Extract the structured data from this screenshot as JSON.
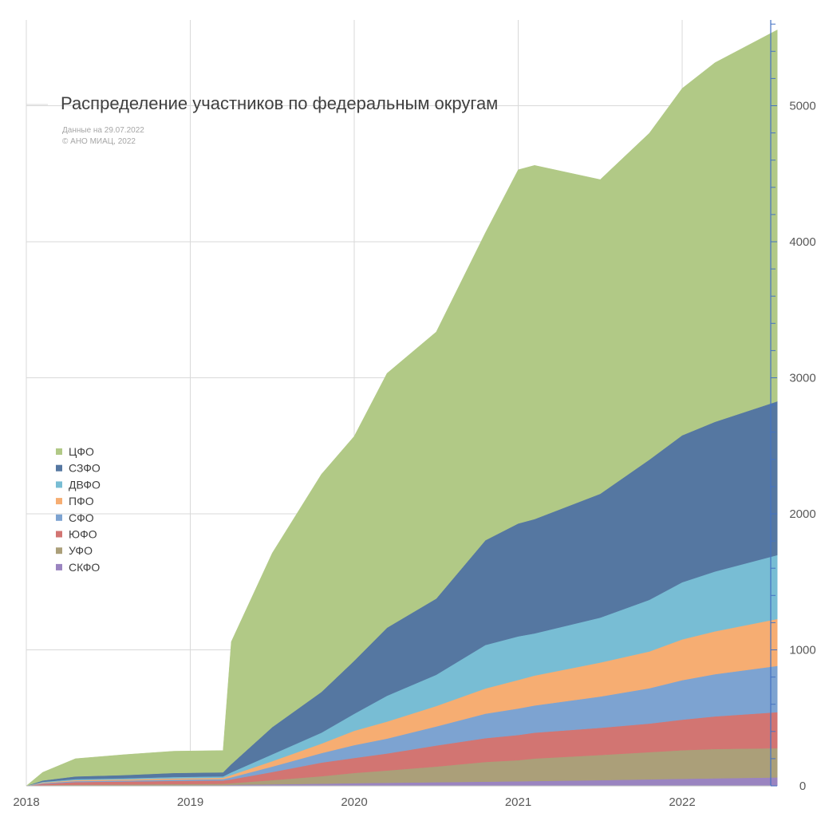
{
  "chart_data": {
    "type": "area",
    "stacked": true,
    "title": "Распределение участников по федеральным округам",
    "annotations": [
      "Данные на 29.07.2022",
      "© АНО МИАЦ, 2022"
    ],
    "xlabel": "",
    "ylabel": "",
    "x_ticks": [
      "2018",
      "2019",
      "2020",
      "2021",
      "2022"
    ],
    "y_ticks": [
      0,
      1000,
      2000,
      3000,
      4000,
      5000
    ],
    "ylim": [
      0,
      5700
    ],
    "y_axis_side": "right",
    "grid": true,
    "legend_position": "left",
    "x": [
      2018.0,
      2018.1,
      2018.3,
      2018.6,
      2018.9,
      2019.2,
      2019.25,
      2019.5,
      2019.8,
      2020.0,
      2020.2,
      2020.5,
      2020.8,
      2021.0,
      2021.1,
      2021.5,
      2021.8,
      2022.0,
      2022.2,
      2022.58
    ],
    "series": [
      {
        "name": "СКФО",
        "color": "#9a84c0",
        "values": [
          0,
          2,
          3,
          4,
          5,
          6,
          8,
          12,
          16,
          20,
          23,
          27,
          31,
          34,
          36,
          42,
          48,
          52,
          56,
          62
        ]
      },
      {
        "name": "УФО",
        "color": "#ab9f79",
        "values": [
          0,
          3,
          5,
          6,
          8,
          9,
          12,
          30,
          55,
          75,
          90,
          115,
          145,
          155,
          165,
          185,
          200,
          210,
          215,
          215
        ]
      },
      {
        "name": "ЮФО",
        "color": "#d27572",
        "values": [
          0,
          10,
          20,
          22,
          24,
          25,
          28,
          60,
          100,
          110,
          125,
          155,
          175,
          185,
          190,
          200,
          210,
          225,
          240,
          265
        ]
      },
      {
        "name": "СФО",
        "color": "#7da3d1",
        "values": [
          0,
          5,
          7,
          8,
          9,
          10,
          15,
          40,
          70,
          95,
          110,
          140,
          180,
          195,
          200,
          230,
          260,
          290,
          310,
          340
        ]
      },
      {
        "name": "ПФО",
        "color": "#f6ad72",
        "values": [
          0,
          5,
          7,
          8,
          9,
          10,
          17,
          40,
          70,
          105,
          125,
          150,
          185,
          210,
          220,
          250,
          270,
          300,
          315,
          345
        ]
      },
      {
        "name": "ДВФО",
        "color": "#78bdd4",
        "values": [
          0,
          5,
          8,
          8,
          10,
          10,
          20,
          50,
          80,
          125,
          190,
          230,
          320,
          320,
          310,
          330,
          380,
          420,
          440,
          470
        ]
      },
      {
        "name": "СЗФО",
        "color": "#5577a1",
        "values": [
          0,
          10,
          20,
          24,
          30,
          30,
          60,
          200,
          300,
          390,
          500,
          560,
          770,
          830,
          840,
          910,
          1030,
          1080,
          1100,
          1130
        ]
      },
      {
        "name": "ЦФО",
        "color": "#b1c986",
        "values": [
          0,
          60,
          130,
          150,
          160,
          160,
          900,
          1280,
          1600,
          1650,
          1870,
          1960,
          2260,
          2600,
          2600,
          2310,
          2400,
          2550,
          2640,
          2730
        ]
      }
    ]
  }
}
